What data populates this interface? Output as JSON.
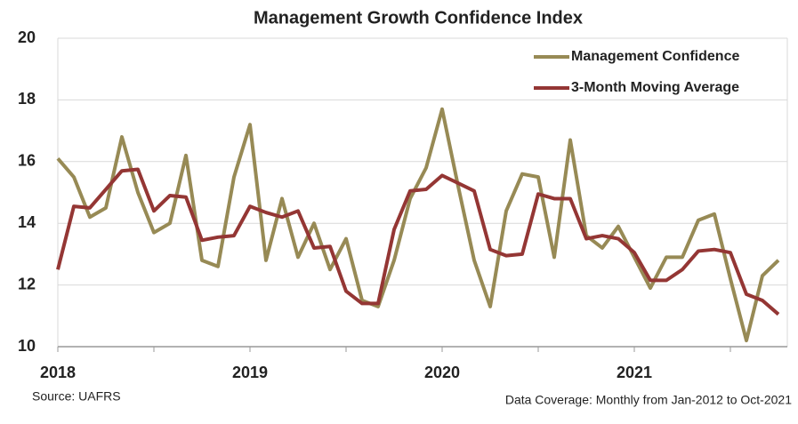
{
  "chart_data": {
    "type": "line",
    "title": "Management Growth Confidence Index",
    "source": "Source: UAFRS",
    "note": "Data Coverage: Monthly from Jan-2012 to Oct-2021",
    "categories": [
      "2018",
      null,
      null,
      null,
      null,
      null,
      null,
      null,
      null,
      null,
      null,
      null,
      "2019",
      null,
      null,
      null,
      null,
      null,
      null,
      null,
      null,
      null,
      null,
      null,
      "2020",
      null,
      null,
      null,
      null,
      null,
      null,
      null,
      null,
      null,
      null,
      null,
      "2021",
      null,
      null,
      null,
      null,
      null,
      null,
      null,
      null,
      null
    ],
    "series": [
      {
        "name": "Management Confidence",
        "color": "#978a55",
        "values": [
          16.1,
          15.5,
          14.2,
          14.5,
          16.8,
          15.0,
          13.7,
          14.0,
          16.2,
          12.8,
          12.6,
          15.5,
          17.2,
          12.8,
          14.8,
          12.9,
          14.0,
          12.5,
          13.5,
          11.5,
          11.3,
          12.8,
          14.8,
          15.8,
          17.7,
          15.2,
          12.8,
          11.3,
          14.4,
          15.6,
          15.5,
          12.9,
          16.7,
          13.6,
          13.2,
          13.9,
          12.9,
          11.9,
          12.9,
          12.9,
          14.1,
          14.3,
          12.2,
          10.2,
          12.3,
          12.8
        ]
      },
      {
        "name": "3-Month Moving Average",
        "color": "#943634",
        "values": [
          12.5,
          14.55,
          14.5,
          15.1,
          15.7,
          15.75,
          14.4,
          14.9,
          14.85,
          13.45,
          13.55,
          13.6,
          14.55,
          14.35,
          14.2,
          14.4,
          13.2,
          13.25,
          11.8,
          11.4,
          11.4,
          13.8,
          15.05,
          15.1,
          15.55,
          15.3,
          15.05,
          13.15,
          12.95,
          13.0,
          14.95,
          14.8,
          14.8,
          13.5,
          13.6,
          13.5,
          13.05,
          12.15,
          12.15,
          12.5,
          13.1,
          13.15,
          13.05,
          11.7,
          11.5,
          11.05
        ]
      }
    ],
    "ylim": [
      10,
      20
    ],
    "yticks": [
      10,
      12,
      14,
      16,
      18,
      20
    ],
    "grid": true,
    "legend": "upper right"
  }
}
